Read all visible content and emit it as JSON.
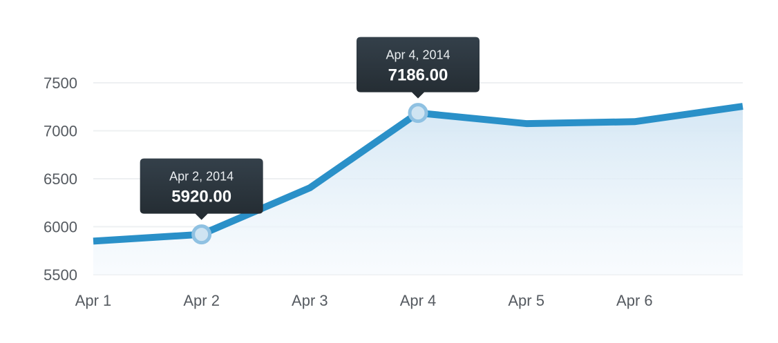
{
  "chart_data": {
    "type": "area",
    "title": "",
    "xlabel": "",
    "ylabel": "",
    "categories": [
      "Apr 1",
      "Apr 2",
      "Apr 3",
      "Apr 4",
      "Apr 5",
      "Apr 6",
      ""
    ],
    "values": [
      5850,
      5920,
      6405,
      7186,
      7075,
      7095,
      7255
    ],
    "ylim": [
      5500,
      7500
    ],
    "yticks": [
      5500,
      6000,
      6500,
      7000,
      7500
    ],
    "grid": true,
    "line_color": "#2a90c8",
    "fill_color": "#d6e8f5",
    "tooltips": [
      {
        "index": 1,
        "date": "Apr 2, 2014",
        "value": "5920.00"
      },
      {
        "index": 3,
        "date": "Apr 4, 2014",
        "value": "7186.00"
      }
    ]
  }
}
